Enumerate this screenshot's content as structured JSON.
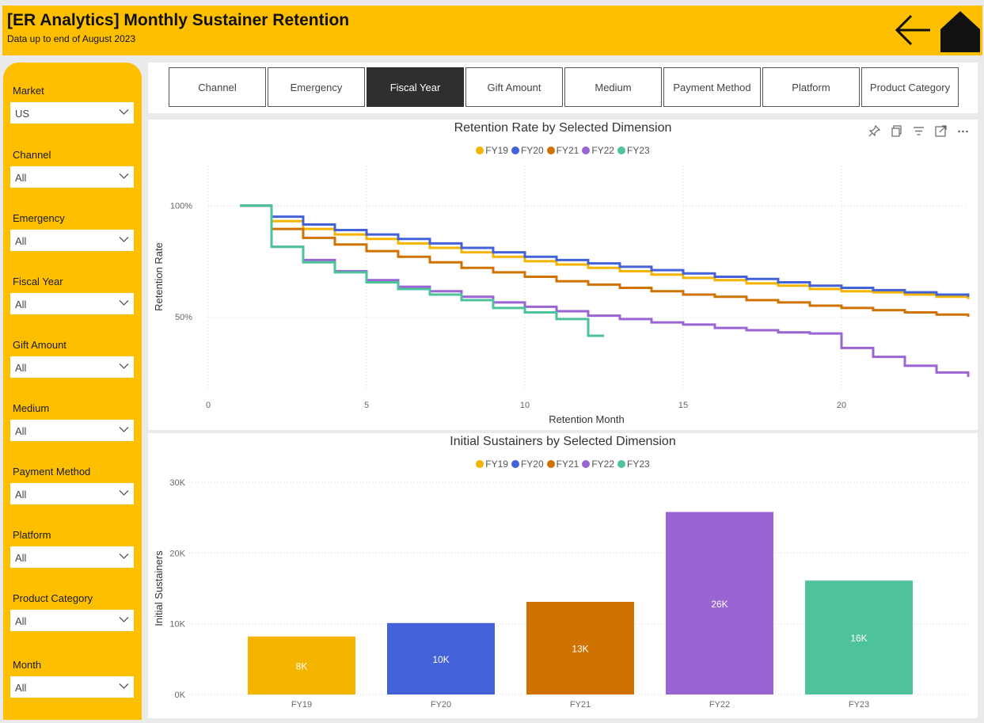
{
  "header": {
    "title": "[ER Analytics] Monthly Sustainer Retention",
    "subtitle": "Data up to end of August 2023",
    "back_icon": "arrow-left-icon",
    "home_icon": "home-icon"
  },
  "filters": [
    {
      "label": "Market",
      "value": "US"
    },
    {
      "label": "Channel",
      "value": "All"
    },
    {
      "label": "Emergency",
      "value": "All"
    },
    {
      "label": "Fiscal Year",
      "value": "All"
    },
    {
      "label": "Gift Amount",
      "value": "All"
    },
    {
      "label": "Medium",
      "value": "All"
    },
    {
      "label": "Payment Method",
      "value": "All"
    },
    {
      "label": "Platform",
      "value": "All"
    },
    {
      "label": "Product Category",
      "value": "All"
    },
    {
      "label": "Month",
      "value": "All"
    }
  ],
  "tabs": [
    {
      "label": "Channel"
    },
    {
      "label": "Emergency"
    },
    {
      "label": "Fiscal Year",
      "active": true
    },
    {
      "label": "Gift Amount"
    },
    {
      "label": "Medium"
    },
    {
      "label": "Payment Method"
    },
    {
      "label": "Platform"
    },
    {
      "label": "Product Category"
    }
  ],
  "colors": {
    "FY19": "#f5b400",
    "FY20": "#4462d8",
    "FY21": "#d07200",
    "FY22": "#9b64d4",
    "FY23": "#4ec29b",
    "brand": "#fdbf00",
    "active_tab": "#2f2f2f"
  },
  "visual_header_icons": [
    "pin-icon",
    "copy-icon",
    "filter-icon",
    "focus-mode-icon",
    "more-options-icon"
  ],
  "chart_data": [
    {
      "type": "line",
      "step": true,
      "title": "Retention Rate by Selected Dimension",
      "xlabel": "Retention Month",
      "ylabel": "Retention Rate",
      "xlim": [
        0,
        24
      ],
      "xticks": [
        0,
        5,
        10,
        15,
        20
      ],
      "ylim": [
        18,
        118
      ],
      "yticks": [
        50,
        100
      ],
      "ytick_labels": [
        "50%",
        "100%"
      ],
      "grid": true,
      "legend": "top-center",
      "legend_entries": [
        "FY19",
        "FY20",
        "FY21",
        "FY22",
        "FY23"
      ],
      "series": [
        {
          "name": "FY19",
          "x": [
            1,
            2,
            3,
            4,
            5,
            6,
            7,
            8,
            9,
            10,
            11,
            12,
            13,
            14,
            15,
            16,
            17,
            18,
            19,
            20,
            21,
            22,
            23,
            24
          ],
          "y": [
            100,
            93,
            89.5,
            87,
            85,
            83,
            81,
            79,
            77,
            75,
            73.5,
            72,
            70.5,
            69,
            67.5,
            66.5,
            65,
            64,
            62.5,
            61.5,
            61,
            60,
            59,
            58
          ]
        },
        {
          "name": "FY20",
          "x": [
            1,
            2,
            3,
            4,
            5,
            6,
            7,
            8,
            9,
            10,
            11,
            12,
            13,
            14,
            15,
            16,
            17,
            18,
            19,
            20,
            21,
            22,
            23,
            24
          ],
          "y": [
            100,
            95,
            91.5,
            89,
            87,
            85,
            83,
            81,
            79,
            77,
            75.5,
            74,
            72.5,
            71,
            69.5,
            68,
            67,
            65.5,
            64,
            63,
            62,
            61,
            60,
            59
          ]
        },
        {
          "name": "FY21",
          "x": [
            1,
            2,
            3,
            4,
            5,
            6,
            7,
            8,
            9,
            10,
            11,
            12,
            13,
            14,
            15,
            16,
            17,
            18,
            19,
            20,
            21,
            22,
            23,
            24
          ],
          "y": [
            100,
            89.5,
            85.5,
            82.5,
            79.5,
            77,
            74.5,
            72,
            70,
            68,
            66,
            64.5,
            63,
            61.5,
            60,
            59,
            57.5,
            56.5,
            55,
            54,
            53,
            52,
            51,
            50
          ]
        },
        {
          "name": "FY22",
          "x": [
            1,
            2,
            3,
            4,
            5,
            6,
            7,
            8,
            9,
            10,
            11,
            12,
            13,
            14,
            15,
            16,
            17,
            18,
            19,
            20,
            21,
            22,
            23,
            24
          ],
          "y": [
            100,
            81.5,
            75.5,
            70.5,
            66.5,
            63.5,
            61.5,
            59,
            56.5,
            54.5,
            52.5,
            50.5,
            49,
            47.5,
            46.5,
            45,
            44,
            43,
            42.5,
            36,
            32,
            28,
            25,
            23
          ]
        },
        {
          "name": "FY23",
          "x": [
            1,
            2,
            3,
            4,
            5,
            6,
            7,
            8,
            9,
            10,
            11,
            12
          ],
          "y": [
            100,
            81.5,
            74.5,
            70,
            65.5,
            62.5,
            60,
            57.5,
            54,
            52,
            49,
            41.5
          ]
        }
      ]
    },
    {
      "type": "bar",
      "title": "Initial Sustainers by Selected Dimension",
      "xlabel": "",
      "ylabel": "Initial Sustainers",
      "ylim": [
        0,
        30000
      ],
      "yticks": [
        0,
        10000,
        20000,
        30000
      ],
      "ytick_labels": [
        "0K",
        "10K",
        "20K",
        "30K"
      ],
      "grid": true,
      "legend": "top-center",
      "legend_entries": [
        "FY19",
        "FY20",
        "FY21",
        "FY22",
        "FY23"
      ],
      "categories": [
        "FY19",
        "FY20",
        "FY21",
        "FY22",
        "FY23"
      ],
      "values": [
        8200,
        10100,
        13100,
        25800,
        16100
      ],
      "data_labels": [
        "8K",
        "10K",
        "13K",
        "26K",
        "16K"
      ]
    }
  ]
}
